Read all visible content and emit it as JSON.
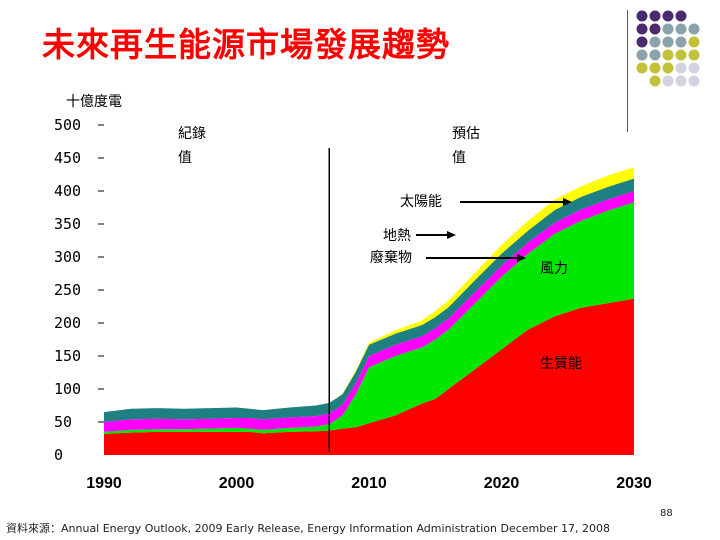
{
  "page": {
    "title": "未來再生能源市場發展趨勢",
    "source": "資料來源：Annual Energy Outlook, 2009 Early Release, Energy Information Administration December 17, 2008",
    "page_number": "88"
  },
  "chart_data": {
    "type": "area",
    "title": "未來再生能源市場發展趨勢",
    "ylabel": "十億度電",
    "xlabel": "",
    "ylim": [
      0,
      500
    ],
    "xlim": [
      1990,
      2030
    ],
    "xticks": [
      1990,
      2000,
      2010,
      2020,
      2030
    ],
    "yticks": [
      0,
      50,
      100,
      150,
      200,
      250,
      300,
      350,
      400,
      450,
      500
    ],
    "x": [
      1990,
      1992,
      1994,
      1996,
      1998,
      2000,
      2001,
      2002,
      2004,
      2006,
      2007,
      2008,
      2009,
      2010,
      2012,
      2014,
      2015,
      2016,
      2018,
      2020,
      2022,
      2024,
      2026,
      2028,
      2030
    ],
    "stacked": true,
    "series": [
      {
        "name": "生質能",
        "color": "#ff0000",
        "values": [
          32,
          34,
          35,
          35,
          35,
          35,
          35,
          33,
          35,
          36,
          37,
          40,
          42,
          48,
          60,
          78,
          85,
          100,
          130,
          160,
          190,
          210,
          223,
          230,
          237
        ]
      },
      {
        "name": "風力",
        "color": "#00e600",
        "values": [
          3,
          4,
          4,
          4,
          5,
          6,
          5,
          5,
          6,
          7,
          10,
          20,
          50,
          85,
          90,
          85,
          90,
          90,
          100,
          110,
          115,
          125,
          132,
          140,
          146
        ]
      },
      {
        "name": "廢棄物",
        "color": "#ff00ff",
        "values": [
          15,
          16,
          16,
          15,
          15,
          15,
          16,
          16,
          16,
          16,
          16,
          16,
          17,
          17,
          17,
          17,
          17,
          17,
          17,
          17,
          17,
          17,
          17,
          17,
          17
        ]
      },
      {
        "name": "地熱",
        "color": "#1e8080",
        "values": [
          15,
          16,
          16,
          16,
          16,
          16,
          14,
          14,
          15,
          16,
          16,
          16,
          17,
          17,
          17,
          17,
          17,
          17,
          18,
          18,
          18,
          19,
          19,
          19,
          19
        ]
      },
      {
        "name": "太陽能",
        "color": "#ffff00",
        "values": [
          0,
          0,
          0,
          0,
          0,
          0,
          0,
          0,
          0,
          0,
          0,
          1,
          2,
          3,
          5,
          7,
          9,
          10,
          11,
          13,
          15,
          16,
          16,
          17,
          17
        ]
      }
    ],
    "annotations": {
      "historical": "紀錄\n值",
      "projected": "預估\n值",
      "divider_year": 2007
    }
  }
}
